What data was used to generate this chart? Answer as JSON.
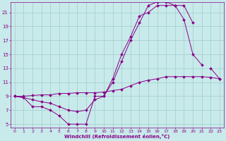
{
  "xlabel": "Windchill (Refroidissement éolien,°C)",
  "bg_color": "#c8eaea",
  "grid_color": "#a0cccc",
  "line_color": "#880088",
  "xlim": [
    -0.5,
    23.5
  ],
  "ylim": [
    4.5,
    22.5
  ],
  "xticks": [
    0,
    1,
    2,
    3,
    4,
    5,
    6,
    7,
    8,
    9,
    10,
    11,
    12,
    13,
    14,
    15,
    16,
    17,
    18,
    19,
    20,
    21,
    22,
    23
  ],
  "yticks": [
    5,
    7,
    9,
    11,
    13,
    15,
    17,
    19,
    21
  ],
  "line1_x": [
    0,
    1,
    2,
    3,
    4,
    5,
    6,
    7,
    8,
    9,
    10,
    11,
    12,
    13,
    14,
    15,
    16,
    17,
    18,
    19,
    20,
    21
  ],
  "line1_y": [
    9,
    8.8,
    7.5,
    7.5,
    7,
    6.2,
    5,
    5,
    5,
    9,
    9,
    11.5,
    15,
    17.5,
    20.5,
    21,
    22,
    22,
    22,
    20,
    15,
    13.5
  ],
  "line2_x": [
    0,
    1,
    2,
    3,
    4,
    5,
    6,
    7,
    8,
    9,
    10,
    11,
    12,
    13,
    14,
    15,
    16,
    17,
    18,
    19,
    20,
    21,
    22,
    23
  ],
  "line2_y": [
    9,
    8.8,
    8.5,
    8.2,
    8,
    7.5,
    7,
    6.8,
    7,
    8.5,
    9,
    11,
    14,
    17,
    19.5,
    22,
    22.5,
    22.5,
    22,
    22,
    19.5,
    null,
    13,
    11.5
  ],
  "line3_x": [
    0,
    1,
    2,
    3,
    4,
    5,
    6,
    7,
    8,
    9,
    10,
    11,
    12,
    13,
    14,
    15,
    16,
    17,
    18,
    19,
    20,
    21,
    22,
    23
  ],
  "line3_y": [
    9,
    9,
    9.1,
    9.2,
    9.2,
    9.4,
    9.4,
    9.5,
    9.5,
    9.5,
    9.6,
    9.8,
    10,
    10.5,
    11,
    11.3,
    11.5,
    11.8,
    11.8,
    11.8,
    11.8,
    11.8,
    11.7,
    11.5
  ]
}
